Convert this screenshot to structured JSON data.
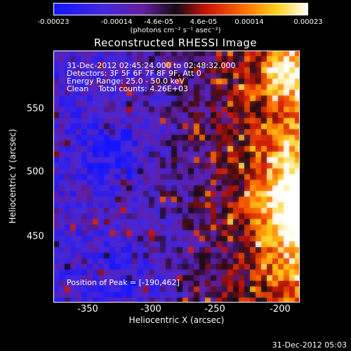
{
  "colorbar": {
    "ticks": [
      "-0.00023",
      "-0.00014",
      "-4.6e-05",
      "4.6e-05",
      "0.00014",
      "0.00023"
    ],
    "units_label": "(photons cm⁻² s⁻¹ asec⁻²)",
    "range": [
      -0.00023,
      0.00023
    ]
  },
  "plot": {
    "title": "Reconstructed RHESSI Image",
    "info_lines": [
      "31-Dec-2012 02:45:24.000 to 02:48:32.000",
      "Detectors: 3F 5F 6F 7F 8F 9F, Att 0",
      "Energy Range: 25.0 - 50.0 keV",
      "Clean    Total counts: 4.26E+03"
    ],
    "peak_label": "Position of Peak = [-190,462]",
    "xlabel": "Heliocentric X (arcsec)",
    "ylabel": "Heliocentric Y (arcsec)",
    "x_ticks": [
      "-350",
      "-300",
      "-250",
      "-200"
    ],
    "y_ticks": [
      "550",
      "500",
      "450"
    ]
  },
  "footer": {
    "timestamp": "31-Dec-2012 05:03"
  },
  "chart_data": {
    "type": "heatmap",
    "title": "Reconstructed RHESSI Image",
    "xlabel": "Heliocentric X (arcsec)",
    "ylabel": "Heliocentric Y (arcsec)",
    "xlim": [
      -378,
      -187
    ],
    "ylim": [
      378,
      590
    ],
    "x_ticks": [
      -350,
      -300,
      -250,
      -200
    ],
    "y_ticks": [
      450,
      500,
      550
    ],
    "colorbar_range": [
      -0.00023,
      0.00023
    ],
    "colormap": "blue-purple-red-yellow-white",
    "peak_position": [
      -190,
      462
    ],
    "grid": false,
    "colors": {
      "low": "#1414ff",
      "mid": "#6a1fa8",
      "high": "#ff3a00",
      "peak": "#ffffff"
    }
  }
}
